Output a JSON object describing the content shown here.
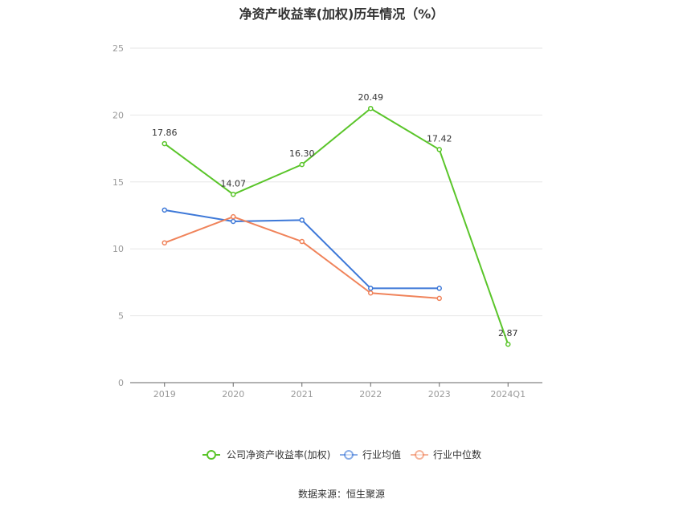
{
  "chart_data": {
    "type": "line",
    "title": "净资产收益率(加权)历年情况（%）",
    "categories": [
      "2019",
      "2020",
      "2021",
      "2022",
      "2023",
      "2024Q1"
    ],
    "ylim": [
      0,
      25
    ],
    "yticks": [
      0,
      5,
      10,
      15,
      20,
      25
    ],
    "grid": true,
    "legend_position": "bottom",
    "series": [
      {
        "name": "公司净资产收益率(加权)",
        "color": "#5ac52a",
        "values": [
          17.86,
          14.07,
          16.3,
          20.49,
          17.42,
          2.87
        ],
        "labels": [
          "17.86",
          "14.07",
          "16.30",
          "20.49",
          "17.42",
          "2.87"
        ]
      },
      {
        "name": "行业均值",
        "color": "#3d78d8",
        "values": [
          12.9,
          12.05,
          12.15,
          7.05,
          7.05,
          null
        ]
      },
      {
        "name": "行业中位数",
        "color": "#f0835a",
        "values": [
          10.45,
          12.4,
          10.55,
          6.7,
          6.3,
          null
        ]
      }
    ]
  },
  "source": "数据来源：恒生聚源"
}
